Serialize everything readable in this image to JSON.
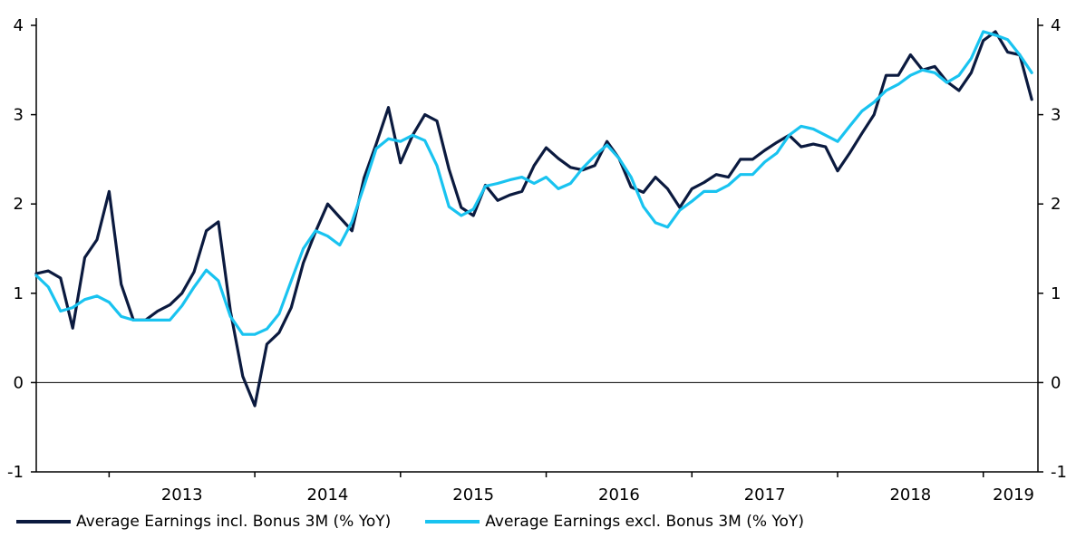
{
  "chart_data": {
    "type": "line",
    "title": "",
    "xlabel": "",
    "ylabel": "",
    "ylim": [
      -1,
      4
    ],
    "y_ticks": [
      "-1",
      "0",
      "1",
      "2",
      "3",
      "4"
    ],
    "x_ticks": [
      "2013",
      "2014",
      "2015",
      "2016",
      "2017",
      "2018",
      "2019"
    ],
    "x_start": 2012.5,
    "x_end": 2019.375,
    "dual_axis": true,
    "grid": false,
    "legend_position": "bottom",
    "series": [
      {
        "name": "Average Earnings incl. Bonus 3M (% YoY)",
        "color": "#0b1a3f",
        "x": [
          2012.5,
          2012.583,
          2012.667,
          2012.75,
          2012.833,
          2012.917,
          2013.0,
          2013.083,
          2013.167,
          2013.25,
          2013.333,
          2013.417,
          2013.5,
          2013.583,
          2013.667,
          2013.75,
          2013.833,
          2013.917,
          2014.0,
          2014.083,
          2014.167,
          2014.25,
          2014.333,
          2014.417,
          2014.5,
          2014.583,
          2014.667,
          2014.75,
          2014.833,
          2014.917,
          2015.0,
          2015.083,
          2015.167,
          2015.25,
          2015.333,
          2015.417,
          2015.5,
          2015.583,
          2015.667,
          2015.75,
          2015.833,
          2015.917,
          2016.0,
          2016.083,
          2016.167,
          2016.25,
          2016.333,
          2016.417,
          2016.5,
          2016.583,
          2016.667,
          2016.75,
          2016.833,
          2016.917,
          2017.0,
          2017.083,
          2017.167,
          2017.25,
          2017.333,
          2017.417,
          2017.5,
          2017.583,
          2017.667,
          2017.75,
          2017.833,
          2017.917,
          2018.0,
          2018.083,
          2018.167,
          2018.25,
          2018.333,
          2018.417,
          2018.5,
          2018.583,
          2018.667,
          2018.75,
          2018.833,
          2018.917,
          2019.0,
          2019.083,
          2019.167,
          2019.25,
          2019.333
        ],
        "values": [
          1.22,
          1.25,
          1.17,
          0.61,
          1.4,
          1.6,
          2.14,
          1.1,
          0.7,
          0.7,
          0.8,
          0.87,
          1.0,
          1.24,
          1.7,
          1.8,
          0.8,
          0.07,
          -0.26,
          0.43,
          0.56,
          0.84,
          1.34,
          1.69,
          2.0,
          1.85,
          1.7,
          2.29,
          2.67,
          3.08,
          2.46,
          2.77,
          3.0,
          2.93,
          2.39,
          1.96,
          1.87,
          2.21,
          2.04,
          2.1,
          2.14,
          2.43,
          2.63,
          2.51,
          2.41,
          2.38,
          2.43,
          2.7,
          2.51,
          2.19,
          2.13,
          2.3,
          2.17,
          1.96,
          2.17,
          2.24,
          2.33,
          2.3,
          2.5,
          2.5,
          2.6,
          2.69,
          2.77,
          2.64,
          2.67,
          2.64,
          2.37,
          2.57,
          2.79,
          3.0,
          3.44,
          3.44,
          3.67,
          3.5,
          3.54,
          3.37,
          3.27,
          3.47,
          3.83,
          3.93,
          3.7,
          3.67,
          3.17
        ]
      },
      {
        "name": "Average Earnings excl. Bonus 3M (% YoY)",
        "color": "#19c3f0",
        "x": [
          2012.5,
          2012.583,
          2012.667,
          2012.75,
          2012.833,
          2012.917,
          2013.0,
          2013.083,
          2013.167,
          2013.25,
          2013.333,
          2013.417,
          2013.5,
          2013.583,
          2013.667,
          2013.75,
          2013.833,
          2013.917,
          2014.0,
          2014.083,
          2014.167,
          2014.25,
          2014.333,
          2014.417,
          2014.5,
          2014.583,
          2014.667,
          2014.75,
          2014.833,
          2014.917,
          2015.0,
          2015.083,
          2015.167,
          2015.25,
          2015.333,
          2015.417,
          2015.5,
          2015.583,
          2015.667,
          2015.75,
          2015.833,
          2015.917,
          2016.0,
          2016.083,
          2016.167,
          2016.25,
          2016.333,
          2016.417,
          2016.5,
          2016.583,
          2016.667,
          2016.75,
          2016.833,
          2016.917,
          2017.0,
          2017.083,
          2017.167,
          2017.25,
          2017.333,
          2017.417,
          2017.5,
          2017.583,
          2017.667,
          2017.75,
          2017.833,
          2017.917,
          2018.0,
          2018.083,
          2018.167,
          2018.25,
          2018.333,
          2018.417,
          2018.5,
          2018.583,
          2018.667,
          2018.75,
          2018.833,
          2018.917,
          2019.0,
          2019.083,
          2019.167,
          2019.25,
          2019.333
        ],
        "values": [
          1.2,
          1.07,
          0.8,
          0.84,
          0.93,
          0.97,
          0.9,
          0.74,
          0.7,
          0.7,
          0.7,
          0.7,
          0.86,
          1.07,
          1.26,
          1.14,
          0.74,
          0.54,
          0.54,
          0.6,
          0.77,
          1.14,
          1.5,
          1.7,
          1.64,
          1.54,
          1.8,
          2.2,
          2.62,
          2.73,
          2.7,
          2.77,
          2.71,
          2.43,
          1.97,
          1.87,
          1.94,
          2.2,
          2.23,
          2.27,
          2.3,
          2.23,
          2.3,
          2.17,
          2.23,
          2.4,
          2.54,
          2.66,
          2.51,
          2.3,
          1.97,
          1.79,
          1.74,
          1.93,
          2.03,
          2.14,
          2.14,
          2.21,
          2.33,
          2.33,
          2.47,
          2.57,
          2.77,
          2.87,
          2.84,
          2.77,
          2.7,
          2.87,
          3.04,
          3.14,
          3.27,
          3.34,
          3.44,
          3.5,
          3.47,
          3.36,
          3.44,
          3.63,
          3.93,
          3.89,
          3.84,
          3.67,
          3.47
        ]
      }
    ]
  }
}
